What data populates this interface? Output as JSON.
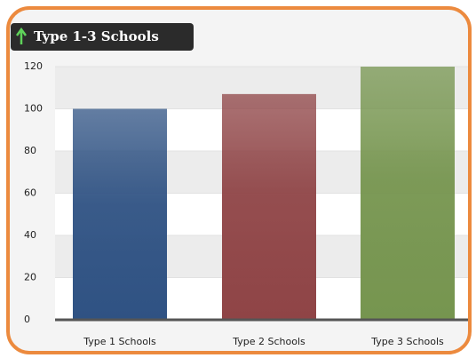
{
  "chart_data": {
    "type": "bar",
    "title": "Type 1-3 Schools",
    "categories": [
      "Type 1 Schools",
      "Type 2 Schools",
      "Type 3 Schools"
    ],
    "values": [
      100,
      107,
      120
    ],
    "colors": [
      "#2f5283",
      "#8f4446",
      "#76954f"
    ],
    "ylim": [
      0,
      120
    ],
    "yticks": [
      0,
      20,
      40,
      60,
      80,
      100,
      120
    ],
    "grid": true
  }
}
